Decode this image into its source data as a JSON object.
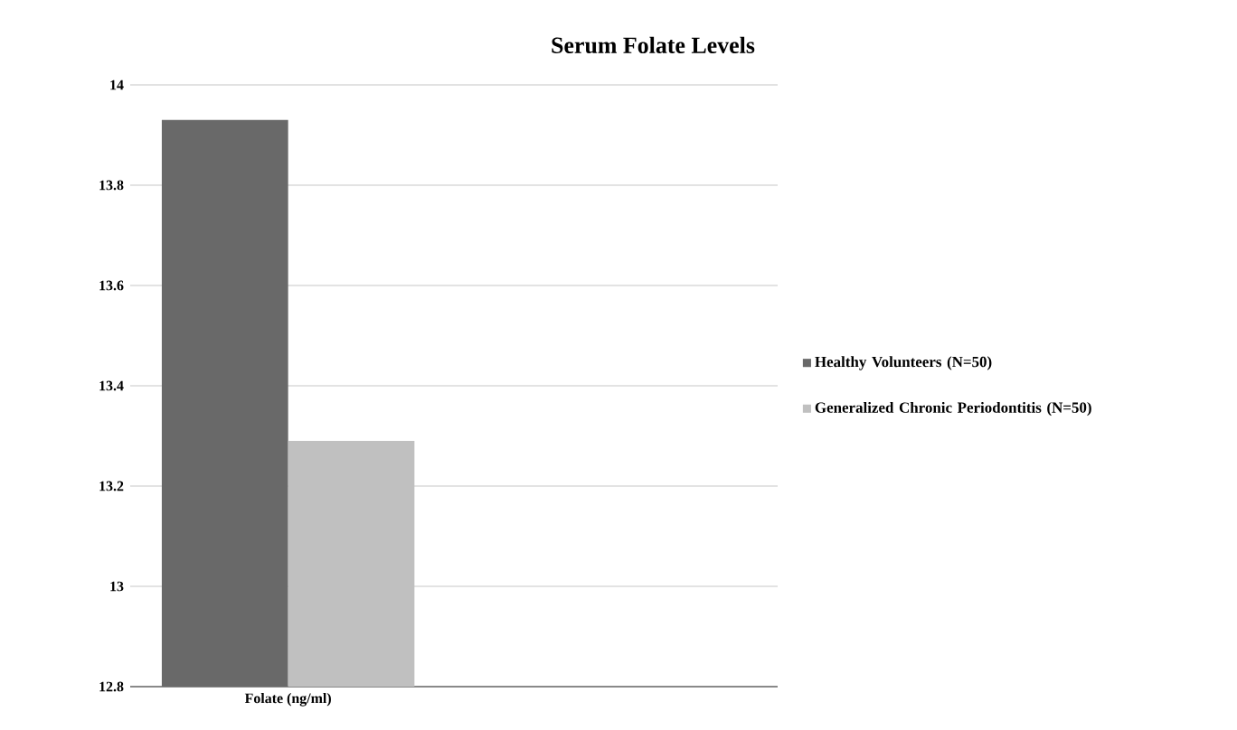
{
  "chart_data": {
    "type": "bar",
    "title": "Serum Folate Levels",
    "categories": [
      "Folate (ng/ml)"
    ],
    "series": [
      {
        "name": "Healthy Volunteers (N=50)",
        "color": "#696969",
        "values": [
          13.93
        ]
      },
      {
        "name": "Generalized Chronic Periodontitis (N=50)",
        "color": "#c0c0c0",
        "values": [
          13.29
        ]
      }
    ],
    "ylim": [
      12.8,
      14
    ],
    "yticks": [
      12.8,
      13,
      13.2,
      13.4,
      13.6,
      13.8,
      14
    ],
    "grid": "y",
    "legend": "right"
  }
}
